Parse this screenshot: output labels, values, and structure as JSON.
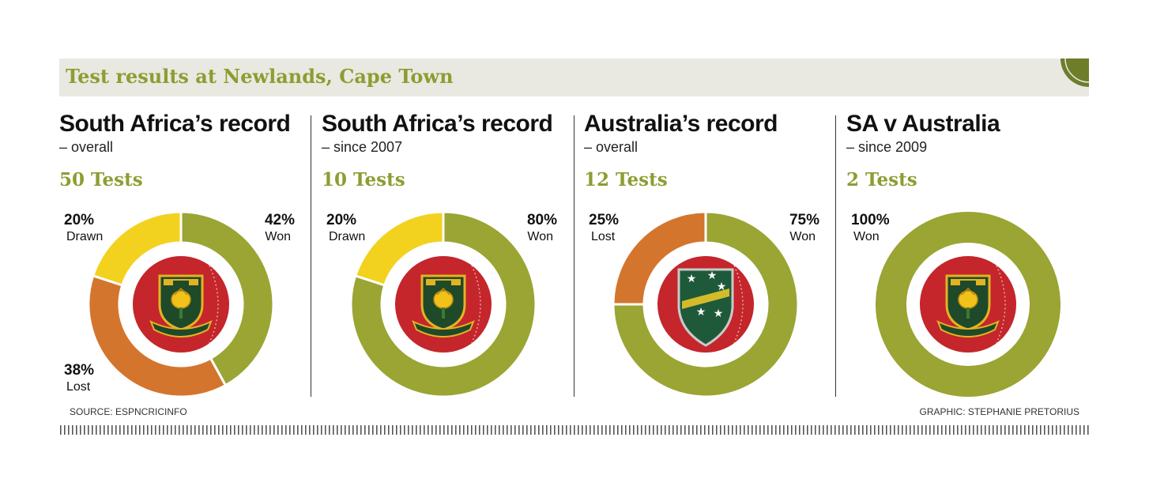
{
  "header": {
    "title": "Test results at Newlands, Cape Town"
  },
  "colors": {
    "won": "#9aa533",
    "lost": "#d4752e",
    "drawn": "#f3d21f",
    "ball": "#c4262b",
    "accent": "#8d9d32"
  },
  "emblems": [
    "sa-crest-icon",
    "sa-crest-icon",
    "australia-crest-icon",
    "sa-crest-icon"
  ],
  "chart_data": [
    {
      "type": "pie",
      "title": "South Africa’s record",
      "subtitle": "– overall",
      "tests": "50 Tests",
      "slices": [
        {
          "label": "Won",
          "value": 42,
          "pct": "42%",
          "color": "#9aa533",
          "pos": "top-right"
        },
        {
          "label": "Lost",
          "value": 38,
          "pct": "38%",
          "color": "#d4752e",
          "pos": "bottom-left"
        },
        {
          "label": "Drawn",
          "value": 20,
          "pct": "20%",
          "color": "#f3d21f",
          "pos": "top-left"
        }
      ]
    },
    {
      "type": "pie",
      "title": "South Africa’s record",
      "subtitle": "– since 2007",
      "tests": "10 Tests",
      "slices": [
        {
          "label": "Won",
          "value": 80,
          "pct": "80%",
          "color": "#9aa533",
          "pos": "top-right"
        },
        {
          "label": "Drawn",
          "value": 20,
          "pct": "20%",
          "color": "#f3d21f",
          "pos": "top-left"
        }
      ]
    },
    {
      "type": "pie",
      "title": "Australia’s record",
      "subtitle": "– overall",
      "tests": "12 Tests",
      "slices": [
        {
          "label": "Won",
          "value": 75,
          "pct": "75%",
          "color": "#9aa533",
          "pos": "top-right"
        },
        {
          "label": "Lost",
          "value": 25,
          "pct": "25%",
          "color": "#d4752e",
          "pos": "top-left"
        }
      ]
    },
    {
      "type": "pie",
      "title": "SA v Australia",
      "subtitle": "– since 2009",
      "tests": "2 Tests",
      "slices": [
        {
          "label": "Won",
          "value": 100,
          "pct": "100%",
          "color": "#9aa533",
          "pos": "top-left"
        }
      ]
    }
  ],
  "footer": {
    "source": "SOURCE: ESPNCRICINFO",
    "credit": "GRAPHIC: STEPHANIE PRETORIUS"
  }
}
